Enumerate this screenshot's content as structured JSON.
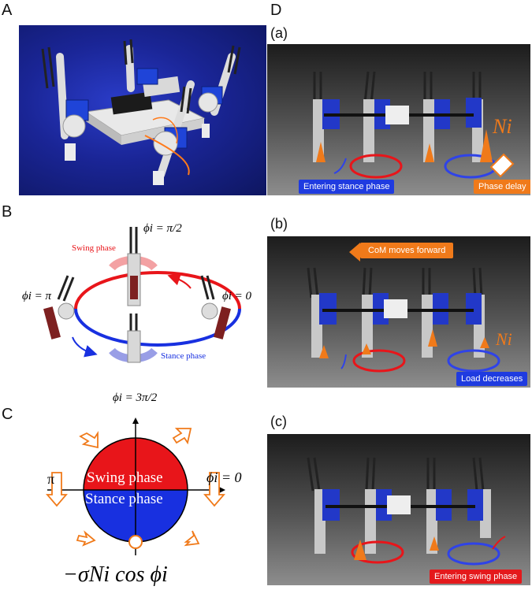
{
  "panels": {
    "A": "A",
    "B": "B",
    "C": "C",
    "D": "D"
  },
  "panel_b": {
    "phi_top": "ϕi = π/2",
    "phi_left": "ϕi = π",
    "phi_right": "ϕi = 0",
    "phi_bottom": "ϕi = 3π/2",
    "swing_label": "Swing phase",
    "stance_label": "Stance phase"
  },
  "panel_c": {
    "swing_label": "Swing phase",
    "stance_label": "Stance phase",
    "pi_label": "π",
    "phi_zero": "ϕi = 0",
    "formula": "−σNi cos ϕi"
  },
  "panel_d": {
    "a": {
      "letter": "(a)",
      "tag_left": "Entering stance phase",
      "tag_right": "Phase delay",
      "force_label": "Ni"
    },
    "b": {
      "letter": "(b)",
      "top_banner": "CoM moves forward",
      "tag_right": "Load decreases",
      "force_label": "Ni"
    },
    "c": {
      "letter": "(c)",
      "tag_right": "Entering swing phase"
    }
  },
  "colors": {
    "swing": "#e8151a",
    "stance": "#1830e0",
    "arrow": "#f07a1a",
    "photo_bg": "#1a2596"
  }
}
